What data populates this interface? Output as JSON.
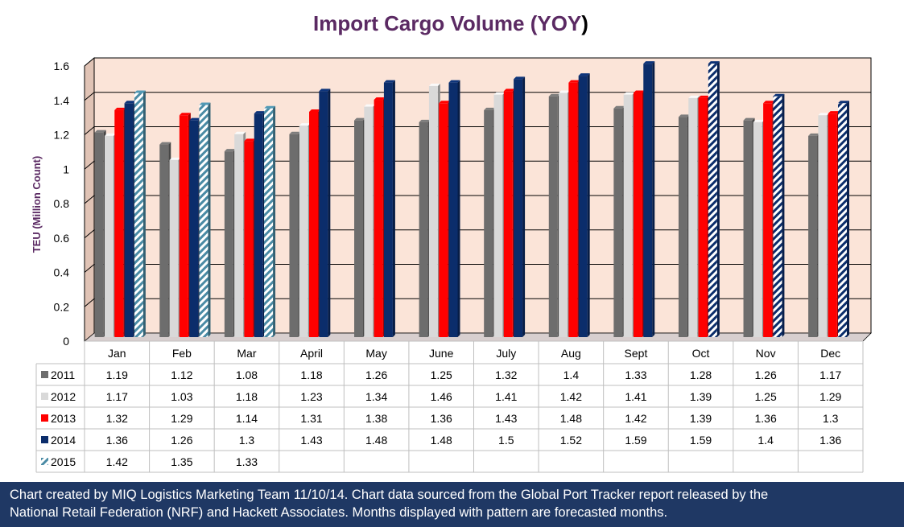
{
  "chart_data": {
    "type": "bar",
    "title": "Import Cargo Volume (YOY)",
    "ylabel": "TEU (Million Count)",
    "xlabel": "",
    "ylim": [
      0,
      1.6
    ],
    "yticks": [
      "0",
      "0.2",
      "0.4",
      "0.6",
      "0.8",
      "1",
      "1.2",
      "1.4",
      "1.6"
    ],
    "grid": true,
    "legend": "data-table-left",
    "categories": [
      "Jan",
      "Feb",
      "Mar",
      "April",
      "May",
      "June",
      "July",
      "Aug",
      "Sept",
      "Oct",
      "Nov",
      "Dec"
    ],
    "series": [
      {
        "name": "2011",
        "color": "#6d6d6d",
        "values": [
          1.19,
          1.12,
          1.08,
          1.18,
          1.26,
          1.25,
          1.32,
          1.4,
          1.33,
          1.28,
          1.26,
          1.17
        ],
        "forecast": []
      },
      {
        "name": "2012",
        "color": "#d9d9d9",
        "values": [
          1.17,
          1.03,
          1.18,
          1.23,
          1.34,
          1.46,
          1.41,
          1.42,
          1.41,
          1.39,
          1.25,
          1.29
        ],
        "forecast": []
      },
      {
        "name": "2013",
        "color": "#ff0000",
        "values": [
          1.32,
          1.29,
          1.14,
          1.31,
          1.38,
          1.36,
          1.43,
          1.48,
          1.42,
          1.39,
          1.36,
          1.3
        ],
        "forecast": []
      },
      {
        "name": "2014",
        "color": "#0b2d6b",
        "values": [
          1.36,
          1.26,
          1.3,
          1.43,
          1.48,
          1.48,
          1.5,
          1.52,
          1.59,
          1.59,
          1.4,
          1.36
        ],
        "forecast": [
          9,
          10,
          11
        ]
      },
      {
        "name": "2015",
        "color": "#4a8ba5",
        "values": [
          1.42,
          1.35,
          1.33,
          null,
          null,
          null,
          null,
          null,
          null,
          null,
          null,
          null
        ],
        "forecast": [
          0,
          1,
          2
        ]
      }
    ],
    "table": [
      [
        "1.19",
        "1.12",
        "1.08",
        "1.18",
        "1.26",
        "1.25",
        "1.32",
        "1.4",
        "1.33",
        "1.28",
        "1.26",
        "1.17"
      ],
      [
        "1.17",
        "1.03",
        "1.18",
        "1.23",
        "1.34",
        "1.46",
        "1.41",
        "1.42",
        "1.41",
        "1.39",
        "1.25",
        "1.29"
      ],
      [
        "1.32",
        "1.29",
        "1.14",
        "1.31",
        "1.38",
        "1.36",
        "1.43",
        "1.48",
        "1.42",
        "1.39",
        "1.36",
        "1.3"
      ],
      [
        "1.36",
        "1.26",
        "1.3",
        "1.43",
        "1.48",
        "1.48",
        "1.5",
        "1.52",
        "1.59",
        "1.59",
        "1.4",
        "1.36"
      ],
      [
        "1.42",
        "1.35",
        "1.33",
        "",
        "",
        "",
        "",
        "",
        "",
        "",
        "",
        ""
      ]
    ]
  },
  "colors": {
    "title": "#5b2a63",
    "plot_bg": "#fbe4d8",
    "footer_bg": "#1f3864"
  },
  "footer": {
    "line1": "Chart created by MIQ Logistics Marketing Team 11/10/14. Chart data sourced from the Global Port Tracker report released by the",
    "line2": "National Retail Federation (NRF) and Hackett Associates. Months displayed with pattern are forecasted months."
  }
}
